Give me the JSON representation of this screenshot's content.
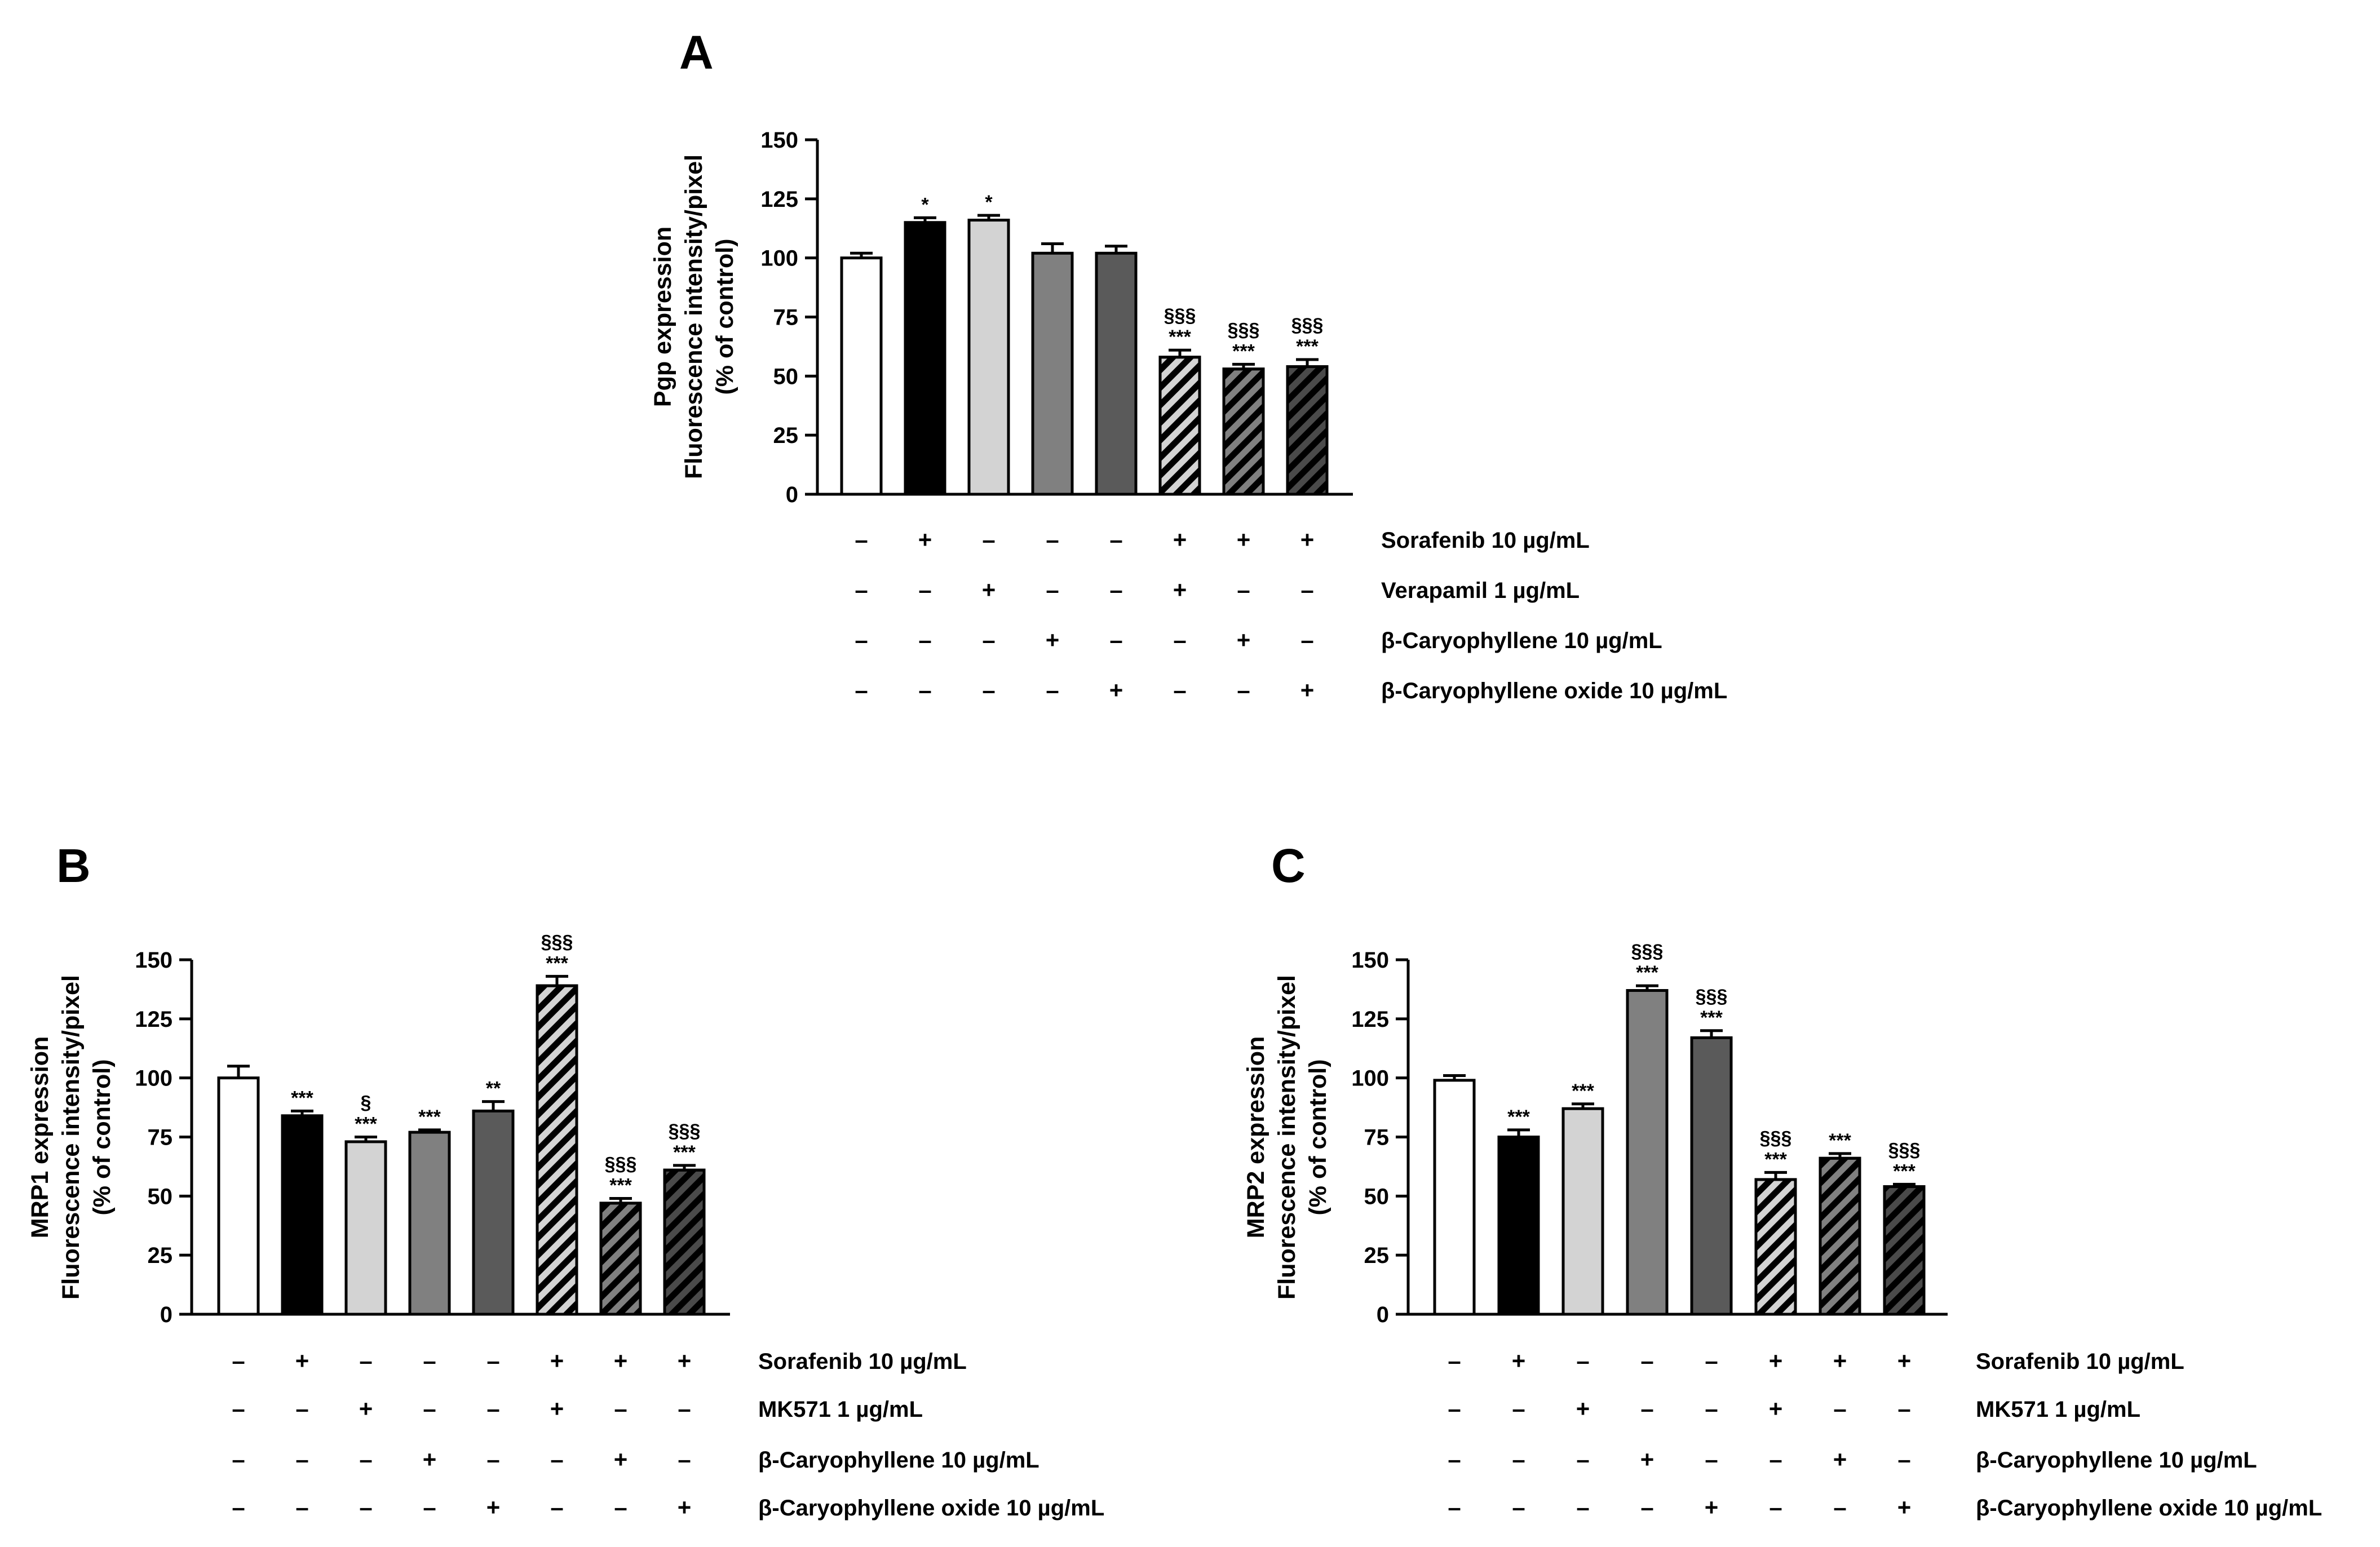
{
  "chart_data": [
    {
      "panel": "A",
      "type": "bar",
      "ylabel_lines": [
        "Pgp expression",
        "Fluorescence intensity/pixel",
        "(% of control)"
      ],
      "ylim": [
        0,
        150
      ],
      "yticks": [
        0,
        25,
        50,
        75,
        100,
        125,
        150
      ],
      "treatments": [
        "Sorafenib 10 µg/mL",
        "Verapamil 1 µg/mL",
        "β-Caryophyllene 10 µg/mL",
        "β-Caryophyllene oxide 10 µg/mL"
      ],
      "matrix": [
        [
          "–",
          "+",
          "–",
          "–",
          "–",
          "+",
          "+",
          "+"
        ],
        [
          "–",
          "–",
          "+",
          "–",
          "–",
          "+",
          "–",
          "–"
        ],
        [
          "–",
          "–",
          "–",
          "+",
          "–",
          "–",
          "+",
          "–"
        ],
        [
          "–",
          "–",
          "–",
          "–",
          "+",
          "–",
          "–",
          "+"
        ]
      ],
      "bars": [
        {
          "value": 100,
          "error": 2,
          "fill": "#ffffff",
          "hatch": false,
          "sig": []
        },
        {
          "value": 115,
          "error": 2,
          "fill": "#000000",
          "hatch": false,
          "sig": [
            "*"
          ]
        },
        {
          "value": 116,
          "error": 2,
          "fill": "#d3d3d3",
          "hatch": false,
          "sig": [
            "*"
          ]
        },
        {
          "value": 102,
          "error": 4,
          "fill": "#808080",
          "hatch": false,
          "sig": []
        },
        {
          "value": 102,
          "error": 3,
          "fill": "#5a5a5a",
          "hatch": false,
          "sig": []
        },
        {
          "value": 58,
          "error": 3,
          "fill": "#d3d3d3",
          "hatch": true,
          "sig": [
            "***",
            "§§§"
          ]
        },
        {
          "value": 53,
          "error": 2,
          "fill": "#808080",
          "hatch": true,
          "sig": [
            "***",
            "§§§"
          ]
        },
        {
          "value": 54,
          "error": 3,
          "fill": "#4a4a4a",
          "hatch": true,
          "sig": [
            "***",
            "§§§"
          ]
        }
      ]
    },
    {
      "panel": "B",
      "type": "bar",
      "ylabel_lines": [
        "MRP1 expression",
        "Fluorescence intensity/pixel",
        "(% of control)"
      ],
      "ylim": [
        0,
        150
      ],
      "yticks": [
        0,
        25,
        50,
        75,
        100,
        125,
        150
      ],
      "treatments": [
        "Sorafenib 10 µg/mL",
        "MK571 1 µg/mL",
        "β-Caryophyllene 10 µg/mL",
        "β-Caryophyllene oxide 10 µg/mL"
      ],
      "matrix": [
        [
          "–",
          "+",
          "–",
          "–",
          "–",
          "+",
          "+",
          "+"
        ],
        [
          "–",
          "–",
          "+",
          "–",
          "–",
          "+",
          "–",
          "–"
        ],
        [
          "–",
          "–",
          "–",
          "+",
          "–",
          "–",
          "+",
          "–"
        ],
        [
          "–",
          "–",
          "–",
          "–",
          "+",
          "–",
          "–",
          "+"
        ]
      ],
      "bars": [
        {
          "value": 100,
          "error": 5,
          "fill": "#ffffff",
          "hatch": false,
          "sig": []
        },
        {
          "value": 84,
          "error": 2,
          "fill": "#000000",
          "hatch": false,
          "sig": [
            "***"
          ]
        },
        {
          "value": 73,
          "error": 2,
          "fill": "#d3d3d3",
          "hatch": false,
          "sig": [
            "***",
            "§"
          ]
        },
        {
          "value": 77,
          "error": 1,
          "fill": "#808080",
          "hatch": false,
          "sig": [
            "***"
          ]
        },
        {
          "value": 86,
          "error": 4,
          "fill": "#5a5a5a",
          "hatch": false,
          "sig": [
            "**"
          ]
        },
        {
          "value": 139,
          "error": 4,
          "fill": "#d3d3d3",
          "hatch": true,
          "sig": [
            "***",
            "§§§"
          ]
        },
        {
          "value": 47,
          "error": 2,
          "fill": "#808080",
          "hatch": true,
          "sig": [
            "***",
            "§§§"
          ]
        },
        {
          "value": 61,
          "error": 2,
          "fill": "#4a4a4a",
          "hatch": true,
          "sig": [
            "***",
            "§§§"
          ]
        }
      ]
    },
    {
      "panel": "C",
      "type": "bar",
      "ylabel_lines": [
        "MRP2 expression",
        "Fluorescence  intensity/pixel",
        "(% of control)"
      ],
      "ylim": [
        0,
        150
      ],
      "yticks": [
        0,
        25,
        50,
        75,
        100,
        125,
        150
      ],
      "treatments": [
        "Sorafenib 10 µg/mL",
        "MK571 1 µg/mL",
        "β-Caryophyllene 10 µg/mL",
        "β-Caryophyllene oxide 10 µg/mL"
      ],
      "matrix": [
        [
          "–",
          "+",
          "–",
          "–",
          "–",
          "+",
          "+",
          "+"
        ],
        [
          "–",
          "–",
          "+",
          "–",
          "–",
          "+",
          "–",
          "–"
        ],
        [
          "–",
          "–",
          "–",
          "+",
          "–",
          "–",
          "+",
          "–"
        ],
        [
          "–",
          "–",
          "–",
          "–",
          "+",
          "–",
          "–",
          "+"
        ]
      ],
      "bars": [
        {
          "value": 99,
          "error": 2,
          "fill": "#ffffff",
          "hatch": false,
          "sig": []
        },
        {
          "value": 75,
          "error": 3,
          "fill": "#000000",
          "hatch": false,
          "sig": [
            "***"
          ]
        },
        {
          "value": 87,
          "error": 2,
          "fill": "#d3d3d3",
          "hatch": false,
          "sig": [
            "***"
          ]
        },
        {
          "value": 137,
          "error": 2,
          "fill": "#808080",
          "hatch": false,
          "sig": [
            "***",
            "§§§"
          ]
        },
        {
          "value": 117,
          "error": 3,
          "fill": "#5a5a5a",
          "hatch": false,
          "sig": [
            "***",
            "§§§"
          ]
        },
        {
          "value": 57,
          "error": 3,
          "fill": "#d3d3d3",
          "hatch": true,
          "sig": [
            "***",
            "§§§"
          ]
        },
        {
          "value": 66,
          "error": 2,
          "fill": "#808080",
          "hatch": true,
          "sig": [
            "***"
          ]
        },
        {
          "value": 54,
          "error": 1,
          "fill": "#4a4a4a",
          "hatch": true,
          "sig": [
            "***",
            "§§§"
          ]
        }
      ]
    }
  ]
}
